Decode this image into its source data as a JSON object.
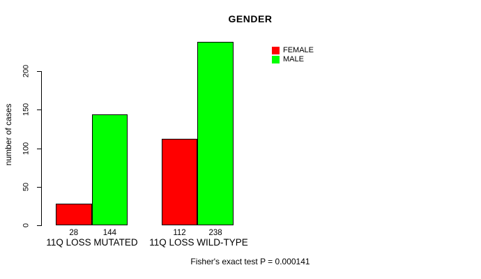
{
  "chart_data": {
    "type": "bar",
    "title": "GENDER",
    "xlabel": "",
    "ylabel": "number of cases",
    "categories": [
      "11Q LOSS MUTATED",
      "11Q LOSS WILD-TYPE"
    ],
    "series": [
      {
        "name": "FEMALE",
        "color": "#ff0000",
        "values": [
          28,
          112
        ]
      },
      {
        "name": "MALE",
        "color": "#00ff00",
        "values": [
          144,
          238
        ]
      }
    ],
    "bar_value_labels": [
      [
        28,
        144
      ],
      [
        112,
        238
      ]
    ],
    "yticks": [
      0,
      50,
      100,
      150,
      200
    ],
    "ylim": [
      0,
      240
    ],
    "grid": false,
    "bar_border_color": "#000000",
    "legend_position": "top-right",
    "subtitle": "Fisher's exact test P = 0.000141"
  }
}
